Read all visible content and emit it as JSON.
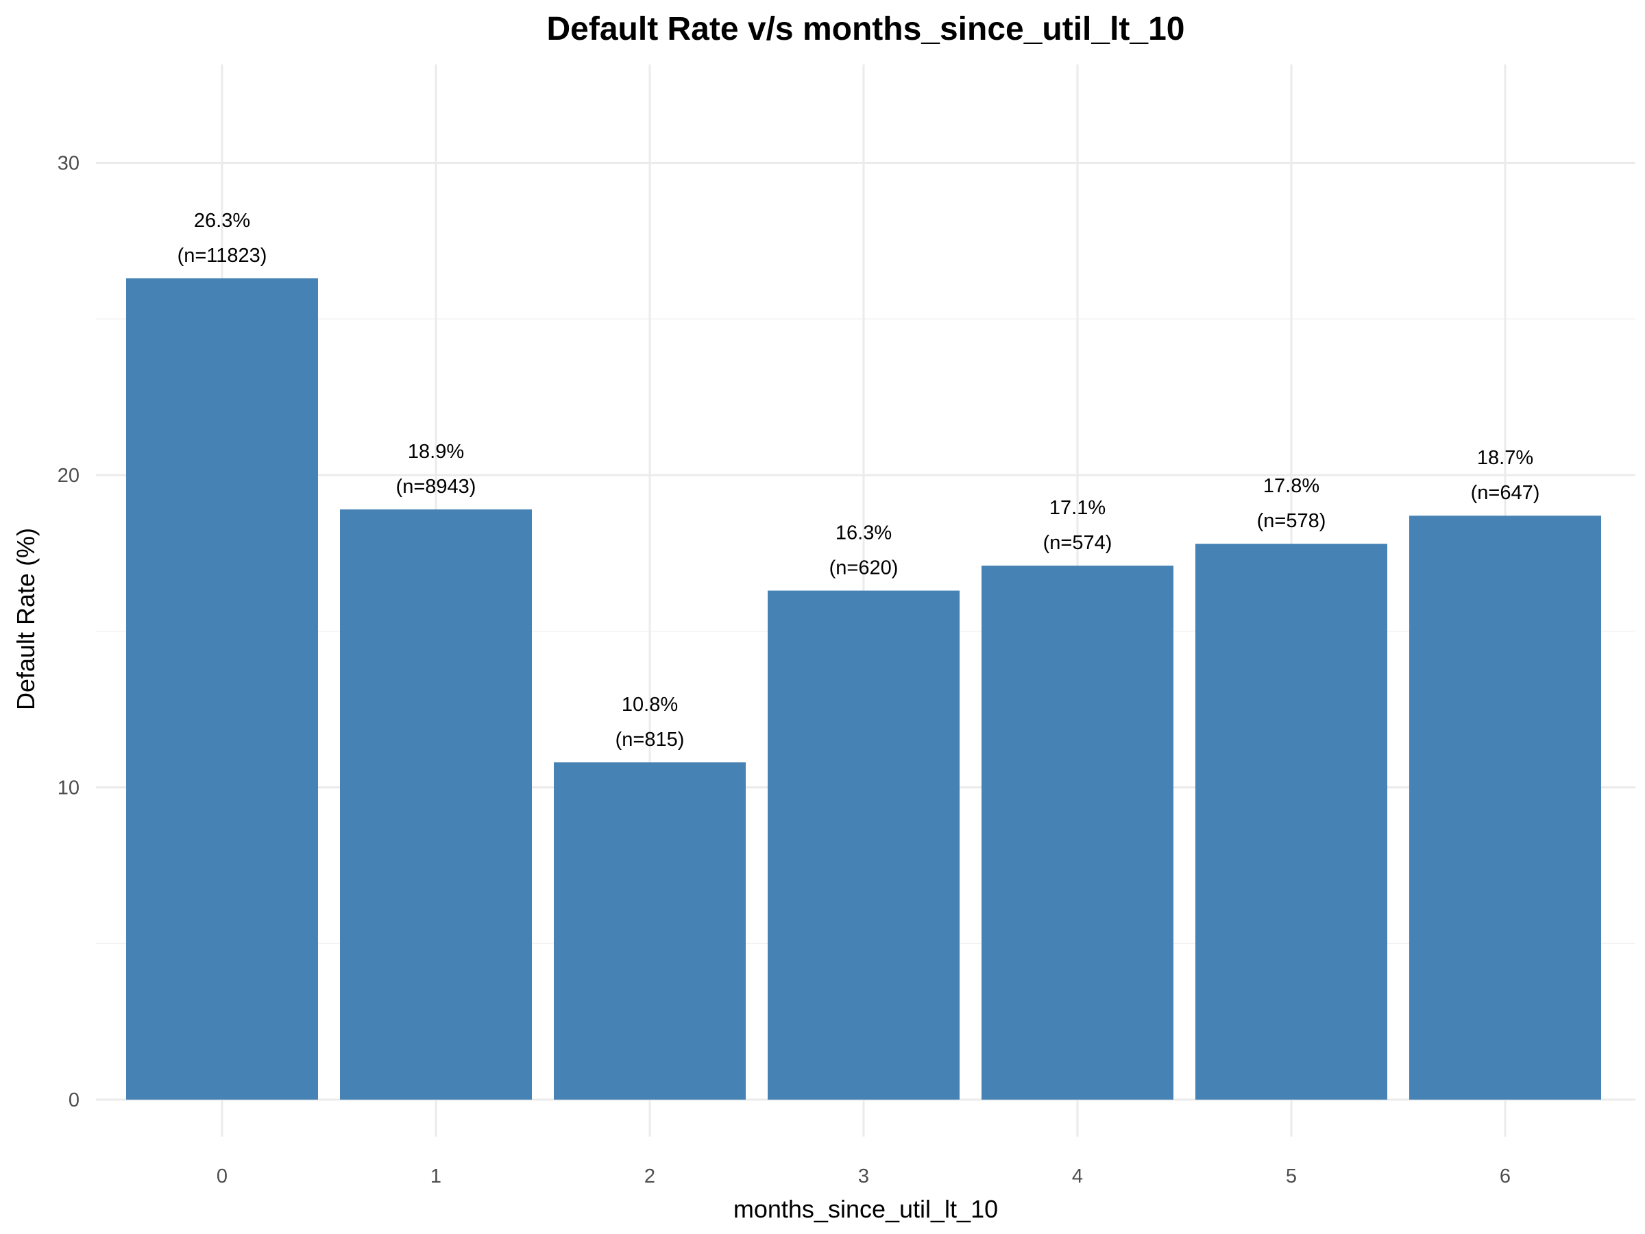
{
  "chart_data": {
    "type": "bar",
    "title": "Default Rate v/s months_since_util_lt_10",
    "xlabel": "months_since_util_lt_10",
    "ylabel": "Default Rate (%)",
    "categories": [
      "0",
      "1",
      "2",
      "3",
      "4",
      "5",
      "6"
    ],
    "values": [
      26.3,
      18.9,
      10.8,
      16.3,
      17.1,
      17.8,
      18.7
    ],
    "labels": [
      {
        "rate": "26.3%",
        "count": "(n=11823)"
      },
      {
        "rate": "18.9%",
        "count": "(n=8943)"
      },
      {
        "rate": "10.8%",
        "count": "(n=815)"
      },
      {
        "rate": "16.3%",
        "count": "(n=620)"
      },
      {
        "rate": "17.1%",
        "count": "(n=574)"
      },
      {
        "rate": "17.8%",
        "count": "(n=578)"
      },
      {
        "rate": "18.7%",
        "count": "(n=647)"
      }
    ],
    "ylim": [
      0,
      32.5
    ],
    "y_ticks": [
      0,
      10,
      20,
      30
    ],
    "y_tick_labels": [
      "0",
      "10",
      "20",
      "30"
    ],
    "grid": true,
    "legend": "none",
    "bar_color": "#4682b4"
  }
}
